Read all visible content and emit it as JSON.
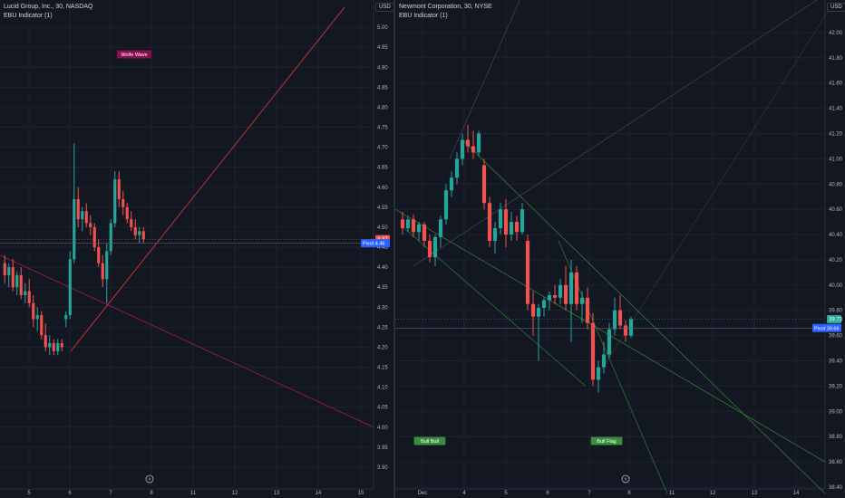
{
  "panes": [
    {
      "id": "left",
      "title": "Lucid Group, Inc., 30, NASDAQ",
      "indicator": "EBU Indicator (1)",
      "currency": "USD",
      "x_ticks": [
        "5",
        "6",
        "7",
        "8",
        "11",
        "12",
        "13",
        "14",
        "15"
      ],
      "chart_data": {
        "type": "candlestick",
        "title": "",
        "ylim": [
          3.85,
          5.05
        ],
        "y_ticks": [
          3.9,
          3.95,
          4.0,
          4.05,
          4.1,
          4.15,
          4.2,
          4.25,
          4.3,
          4.35,
          4.4,
          4.45,
          4.5,
          4.55,
          4.6,
          4.65,
          4.7,
          4.75,
          4.8,
          4.85,
          4.9,
          4.95,
          5.0
        ],
        "candles": [
          [
            4.41,
            4.43,
            4.36,
            4.38
          ],
          [
            4.38,
            4.41,
            4.35,
            4.4
          ],
          [
            4.4,
            4.42,
            4.34,
            4.35
          ],
          [
            4.35,
            4.39,
            4.33,
            4.38
          ],
          [
            4.38,
            4.4,
            4.32,
            4.33
          ],
          [
            4.33,
            4.36,
            4.31,
            4.34
          ],
          [
            4.34,
            4.37,
            4.3,
            4.31
          ],
          [
            4.31,
            4.33,
            4.25,
            4.27
          ],
          [
            4.27,
            4.3,
            4.24,
            4.28
          ],
          [
            4.28,
            4.29,
            4.22,
            4.23
          ],
          [
            4.23,
            4.26,
            4.19,
            4.2
          ],
          [
            4.2,
            4.23,
            4.18,
            4.21
          ],
          [
            4.21,
            4.22,
            4.18,
            4.19
          ],
          [
            4.19,
            4.22,
            4.18,
            4.21
          ],
          [
            4.21,
            4.22,
            4.19,
            4.2
          ],
          [
            4.27,
            4.29,
            4.25,
            4.28
          ],
          [
            4.28,
            4.44,
            4.27,
            4.42
          ],
          [
            4.42,
            4.71,
            4.41,
            4.57
          ],
          [
            4.57,
            4.6,
            4.5,
            4.52
          ],
          [
            4.52,
            4.55,
            4.49,
            4.54
          ],
          [
            4.54,
            4.56,
            4.5,
            4.51
          ],
          [
            4.51,
            4.53,
            4.48,
            4.5
          ],
          [
            4.5,
            4.51,
            4.44,
            4.45
          ],
          [
            4.45,
            4.47,
            4.4,
            4.41
          ],
          [
            4.41,
            4.43,
            4.35,
            4.37
          ],
          [
            4.37,
            4.46,
            4.31,
            4.44
          ],
          [
            4.44,
            4.52,
            4.43,
            4.51
          ],
          [
            4.51,
            4.64,
            4.5,
            4.62
          ],
          [
            4.62,
            4.64,
            4.55,
            4.57
          ],
          [
            4.57,
            4.59,
            4.53,
            4.55
          ],
          [
            4.55,
            4.56,
            4.51,
            4.52
          ],
          [
            4.52,
            4.54,
            4.49,
            4.5
          ],
          [
            4.5,
            4.52,
            4.47,
            4.48
          ],
          [
            4.48,
            4.5,
            4.46,
            4.49
          ],
          [
            4.49,
            4.5,
            4.46,
            4.47
          ]
        ],
        "last_price": "4.47",
        "pivot": {
          "label": "Pivot",
          "value": "4.46"
        },
        "annotations": [
          {
            "text": "Wolfe Wave",
            "color": "#880e4f"
          }
        ]
      }
    },
    {
      "id": "right",
      "title": "Newmont Corporation, 30, NYSE",
      "indicator": "EBU Indicator (1)",
      "currency": "USD",
      "x_ticks": [
        "Dec",
        "4",
        "5",
        "6",
        "7",
        "8",
        "11",
        "12",
        "13",
        "14"
      ],
      "chart_data": {
        "type": "candlestick",
        "title": "",
        "ylim": [
          38.4,
          42.2
        ],
        "y_ticks": [
          38.4,
          38.6,
          38.8,
          39.0,
          39.2,
          39.4,
          39.6,
          39.8,
          40.0,
          40.2,
          40.4,
          40.6,
          40.8,
          41.0,
          41.2,
          41.4,
          41.6,
          41.8,
          42.0
        ],
        "candles": [
          [
            40.52,
            40.58,
            40.4,
            40.45
          ],
          [
            40.45,
            40.55,
            40.42,
            40.52
          ],
          [
            40.52,
            40.56,
            40.38,
            40.42
          ],
          [
            40.42,
            40.5,
            40.35,
            40.48
          ],
          [
            40.48,
            40.5,
            40.3,
            40.35
          ],
          [
            40.35,
            40.4,
            40.18,
            40.22
          ],
          [
            40.22,
            40.4,
            40.15,
            40.38
          ],
          [
            40.38,
            40.55,
            40.3,
            40.52
          ],
          [
            40.52,
            40.8,
            40.48,
            40.75
          ],
          [
            40.75,
            40.9,
            40.7,
            40.85
          ],
          [
            40.85,
            41.05,
            40.8,
            41.0
          ],
          [
            41.0,
            41.2,
            40.95,
            41.15
          ],
          [
            41.15,
            41.27,
            41.05,
            41.1
          ],
          [
            41.1,
            41.22,
            41.0,
            41.05
          ],
          [
            41.05,
            41.22,
            41.02,
            41.2
          ],
          [
            40.95,
            41.0,
            40.6,
            40.65
          ],
          [
            40.65,
            40.7,
            40.3,
            40.35
          ],
          [
            40.35,
            40.5,
            40.25,
            40.45
          ],
          [
            40.45,
            40.65,
            40.4,
            40.6
          ],
          [
            40.6,
            40.68,
            40.3,
            40.4
          ],
          [
            40.4,
            40.58,
            40.35,
            40.5
          ],
          [
            40.5,
            40.55,
            40.35,
            40.42
          ],
          [
            40.42,
            40.65,
            40.4,
            40.6
          ],
          [
            40.35,
            40.4,
            39.8,
            39.85
          ],
          [
            39.85,
            39.95,
            39.6,
            39.75
          ],
          [
            39.75,
            39.85,
            39.4,
            39.82
          ],
          [
            39.82,
            39.9,
            39.75,
            39.88
          ],
          [
            39.88,
            39.95,
            39.8,
            39.92
          ],
          [
            39.92,
            40.0,
            39.85,
            39.9
          ],
          [
            39.9,
            40.05,
            39.85,
            40.0
          ],
          [
            40.0,
            40.15,
            39.8,
            39.85
          ],
          [
            39.85,
            40.2,
            39.55,
            40.1
          ],
          [
            40.1,
            40.15,
            39.8,
            39.85
          ],
          [
            39.85,
            39.95,
            39.7,
            39.9
          ],
          [
            39.9,
            39.98,
            39.65,
            39.7
          ],
          [
            39.7,
            39.78,
            39.2,
            39.25
          ],
          [
            39.25,
            39.4,
            39.15,
            39.35
          ],
          [
            39.35,
            39.55,
            39.3,
            39.45
          ],
          [
            39.45,
            39.7,
            39.42,
            39.65
          ],
          [
            39.65,
            39.9,
            39.6,
            39.8
          ],
          [
            39.8,
            39.92,
            39.65,
            39.68
          ],
          [
            39.68,
            39.72,
            39.55,
            39.6
          ],
          [
            39.6,
            39.75,
            39.58,
            39.73
          ]
        ],
        "last_price": "39.73",
        "pivot": {
          "label": "Pivot",
          "value": "39.66"
        },
        "annotations": [
          {
            "text": "Bull Bull",
            "color": "#388e3c"
          },
          {
            "text": "Bull Flag",
            "color": "#388e3c"
          }
        ]
      }
    }
  ],
  "colors": {
    "up": "#26a69a",
    "down": "#ef5350",
    "background": "#131722",
    "grid": "#1e222d",
    "pivot": "#2962ff"
  }
}
